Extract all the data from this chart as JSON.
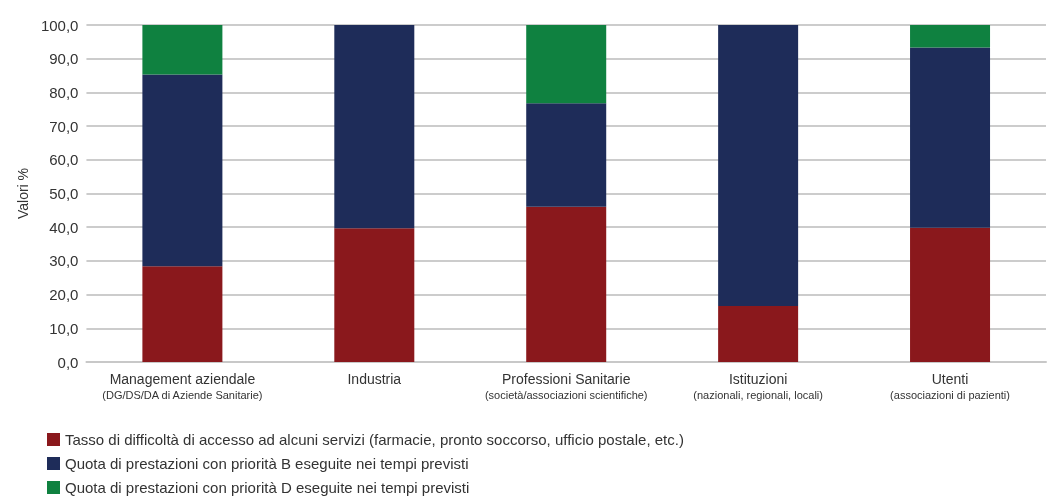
{
  "chart_data": {
    "type": "bar",
    "stacked": true,
    "ylabel": "Valori %",
    "categories": [
      "Management aziendale\n(DG/DS/DA di Aziende Sanitarie)",
      "Industria",
      "Professioni Sanitarie\n(società/associazioni scientifiche)",
      "Istituzioni\n(nazionali, regionali, locali)",
      "Utenti\n(associazioni di pazienti)"
    ],
    "series": [
      {
        "name": "Tasso di difficoltà di accesso ad alcuni servizi (farmacie, pronto soccorso, ufficio postale, etc.)",
        "color": "#8a181c",
        "values": [
          28.4,
          39.7,
          46.1,
          16.6,
          39.8
        ]
      },
      {
        "name": "Quota di prestazioni con priorità B eseguite nei tempi previsti",
        "color": "#1e2c59",
        "values": [
          56.9,
          60.3,
          30.7,
          83.4,
          53.5
        ]
      },
      {
        "name": "Quota di prestazioni con priorità D eseguite nei tempi previsti",
        "color": "#0f8140",
        "values": [
          14.7,
          null,
          23.2,
          null,
          6.7
        ]
      }
    ],
    "ylim": [
      0,
      100
    ],
    "yticks": [
      {
        "value": 0,
        "label": "0,0"
      },
      {
        "value": 10,
        "label": "10,0"
      },
      {
        "value": 20,
        "label": "20,0"
      },
      {
        "value": 30,
        "label": "30,0"
      },
      {
        "value": 40,
        "label": "40,0"
      },
      {
        "value": 50,
        "label": "50,0"
      },
      {
        "value": 60,
        "label": "60,0"
      },
      {
        "value": 70,
        "label": "70,0"
      },
      {
        "value": 80,
        "label": "80,0"
      },
      {
        "value": 90,
        "label": "90,0"
      },
      {
        "value": 100,
        "label": "100,0"
      }
    ],
    "grid": "y",
    "legend": "bottom left"
  }
}
